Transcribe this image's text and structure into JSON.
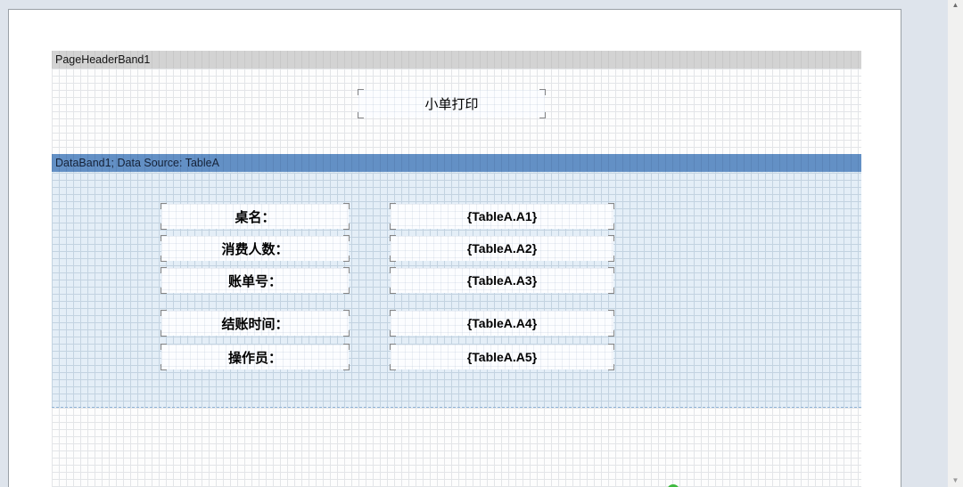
{
  "bands": {
    "page_header": {
      "title": "PageHeaderBand1"
    },
    "data": {
      "title": "DataBand1; Data Source: TableA"
    }
  },
  "title_box": {
    "text": "小单打印"
  },
  "data_fields": [
    {
      "label": "桌名：",
      "value": "{TableA.A1}"
    },
    {
      "label": "消费人数：",
      "value": "{TableA.A2}"
    },
    {
      "label": "账单号：",
      "value": "{TableA.A3}"
    },
    {
      "label": "结账时间：",
      "value": "{TableA.A4}"
    },
    {
      "label": "操作员：",
      "value": "{TableA.A5}"
    }
  ],
  "scrollbar": {
    "up_icon": "▲",
    "down_icon": "▼"
  },
  "colors": {
    "data_band_bar": "#6390c5",
    "page_header_bar": "#d3d3d3",
    "data_band_fill": "#e4eef7",
    "canvas_background": "#dee4ec",
    "page_background": "#ffffff",
    "accent_green": "#3eb93e"
  }
}
